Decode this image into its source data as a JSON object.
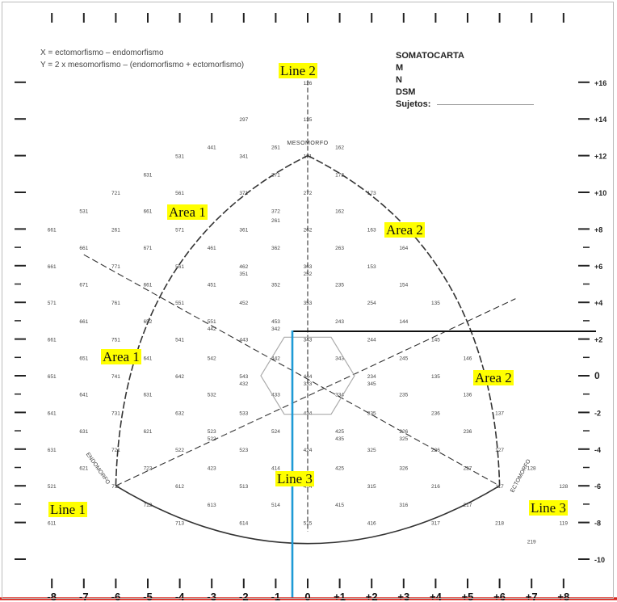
{
  "formulas": {
    "x": "X = ectomorfismo – endomorfismo",
    "y": "Y = 2 x mesomorfismo – (endomorfismo + ectomorfismo)"
  },
  "info": {
    "title": "SOMATOCARTA",
    "m": "M",
    "n": "N",
    "dsm": "DSM",
    "sujetos": "Sujetos:"
  },
  "labels": {
    "line1": "Line 1",
    "line2": "Line 2",
    "line3_center": "Line 3",
    "line3_right": "Line 3",
    "area1_top": "Area 1",
    "area1_mid": "Area 1",
    "area2_top": "Area 2",
    "area2_mid": "Area 2"
  },
  "axis_text": {
    "mesomorfo": "MESOMORFO",
    "endomorfo": "ENDOMORFO",
    "ectomorfo": "ECTOMORFO"
  },
  "x_ticks": [
    "-8",
    "-7",
    "-6",
    "-5",
    "-4",
    "-3",
    "-2",
    "-1",
    "0",
    "+1",
    "+2",
    "+3",
    "+4",
    "+5",
    "+6",
    "+7",
    "+8"
  ],
  "y_ticks": [
    "+16",
    "+14",
    "+12",
    "+10",
    "+8",
    "+6",
    "+4",
    "+2",
    "0",
    "-2",
    "-4",
    "-6",
    "-8",
    "-10"
  ],
  "grid_codes": [
    {
      "x": 0,
      "y": 16,
      "t": "126"
    },
    {
      "x": 0,
      "y": 14,
      "t": "135"
    },
    {
      "x": -2,
      "y": 14,
      "t": "297"
    },
    {
      "x": 0,
      "y": 12,
      "t": "171"
    },
    {
      "x": -1,
      "y": 12.5,
      "t": "261"
    },
    {
      "x": 1,
      "y": 12.5,
      "t": "162"
    },
    {
      "x": -3,
      "y": 12.5,
      "t": "441"
    },
    {
      "x": -4,
      "y": 12,
      "t": "531"
    },
    {
      "x": -2,
      "y": 12,
      "t": "341"
    },
    {
      "x": -1,
      "y": 11,
      "t": "271"
    },
    {
      "x": 1,
      "y": 11,
      "t": "172"
    },
    {
      "x": 0,
      "y": 10,
      "t": "272"
    },
    {
      "x": -2,
      "y": 10,
      "t": "371"
    },
    {
      "x": 2,
      "y": 10,
      "t": "173"
    },
    {
      "x": -4,
      "y": 10,
      "t": "561"
    },
    {
      "x": -5,
      "y": 11,
      "t": "631"
    },
    {
      "x": -6,
      "y": 10,
      "t": "721"
    },
    {
      "x": -7,
      "y": 9,
      "t": "531"
    },
    {
      "x": -5,
      "y": 9,
      "t": "661"
    },
    {
      "x": -1,
      "y": 9,
      "t": "372"
    },
    {
      "x": -1,
      "y": 8.5,
      "t": "261"
    },
    {
      "x": 1,
      "y": 9,
      "t": "162"
    },
    {
      "x": 0,
      "y": 8,
      "t": "262"
    },
    {
      "x": -2,
      "y": 8,
      "t": "361"
    },
    {
      "x": -4,
      "y": 8,
      "t": "571"
    },
    {
      "x": -6,
      "y": 8,
      "t": "261"
    },
    {
      "x": 2,
      "y": 8,
      "t": "163"
    },
    {
      "x": -8,
      "y": 8,
      "t": "661"
    },
    {
      "x": -7,
      "y": 7,
      "t": "661"
    },
    {
      "x": -5,
      "y": 7,
      "t": "671"
    },
    {
      "x": -3,
      "y": 7,
      "t": "461"
    },
    {
      "x": -1,
      "y": 7,
      "t": "362"
    },
    {
      "x": 1,
      "y": 7,
      "t": "263"
    },
    {
      "x": 3,
      "y": 7,
      "t": "164"
    },
    {
      "x": 0,
      "y": 6,
      "t": "363"
    },
    {
      "x": 0,
      "y": 5.6,
      "t": "252"
    },
    {
      "x": -2,
      "y": 6,
      "t": "462"
    },
    {
      "x": -2,
      "y": 5.6,
      "t": "351"
    },
    {
      "x": -4,
      "y": 6,
      "t": "561"
    },
    {
      "x": -6,
      "y": 6,
      "t": "771"
    },
    {
      "x": -8,
      "y": 6,
      "t": "661"
    },
    {
      "x": 2,
      "y": 6,
      "t": "153"
    },
    {
      "x": -7,
      "y": 5,
      "t": "671"
    },
    {
      "x": -5,
      "y": 5,
      "t": "661"
    },
    {
      "x": -3,
      "y": 5,
      "t": "451"
    },
    {
      "x": -1,
      "y": 5,
      "t": "352"
    },
    {
      "x": 1,
      "y": 5,
      "t": "235"
    },
    {
      "x": 3,
      "y": 5,
      "t": "154"
    },
    {
      "x": 0,
      "y": 4,
      "t": "353"
    },
    {
      "x": -2,
      "y": 4,
      "t": "452"
    },
    {
      "x": -4,
      "y": 4,
      "t": "551"
    },
    {
      "x": -6,
      "y": 4,
      "t": "761"
    },
    {
      "x": -8,
      "y": 4,
      "t": "571"
    },
    {
      "x": 2,
      "y": 4,
      "t": "254"
    },
    {
      "x": 4,
      "y": 4,
      "t": "135"
    },
    {
      "x": -7,
      "y": 3,
      "t": "661"
    },
    {
      "x": -5,
      "y": 3,
      "t": "652"
    },
    {
      "x": -3,
      "y": 3,
      "t": "551"
    },
    {
      "x": -3,
      "y": 2.6,
      "t": "442"
    },
    {
      "x": -1,
      "y": 3,
      "t": "453"
    },
    {
      "x": -1,
      "y": 2.6,
      "t": "342"
    },
    {
      "x": 1,
      "y": 3,
      "t": "243"
    },
    {
      "x": 3,
      "y": 3,
      "t": "144"
    },
    {
      "x": 0,
      "y": 2,
      "t": "343"
    },
    {
      "x": -2,
      "y": 2,
      "t": "443"
    },
    {
      "x": -4,
      "y": 2,
      "t": "541"
    },
    {
      "x": -6,
      "y": 2,
      "t": "751"
    },
    {
      "x": -8,
      "y": 2,
      "t": "661"
    },
    {
      "x": 2,
      "y": 2,
      "t": "244"
    },
    {
      "x": 4,
      "y": 2,
      "t": "145"
    },
    {
      "x": -7,
      "y": 1,
      "t": "651"
    },
    {
      "x": -5,
      "y": 1,
      "t": "641"
    },
    {
      "x": -3,
      "y": 1,
      "t": "542"
    },
    {
      "x": -1,
      "y": 1,
      "t": "442"
    },
    {
      "x": 1,
      "y": 1,
      "t": "343"
    },
    {
      "x": 3,
      "y": 1,
      "t": "245"
    },
    {
      "x": 5,
      "y": 1,
      "t": "146"
    },
    {
      "x": 0,
      "y": 0,
      "t": "444"
    },
    {
      "x": 0,
      "y": -0.4,
      "t": "333"
    },
    {
      "x": -2,
      "y": 0,
      "t": "543"
    },
    {
      "x": -2,
      "y": -0.4,
      "t": "432"
    },
    {
      "x": 2,
      "y": 0,
      "t": "234"
    },
    {
      "x": 2,
      "y": -0.4,
      "t": "345"
    },
    {
      "x": -4,
      "y": 0,
      "t": "642"
    },
    {
      "x": -6,
      "y": 0,
      "t": "741"
    },
    {
      "x": -8,
      "y": 0,
      "t": "651"
    },
    {
      "x": 4,
      "y": 0,
      "t": "135"
    },
    {
      "x": -7,
      "y": -1,
      "t": "641"
    },
    {
      "x": -5,
      "y": -1,
      "t": "631"
    },
    {
      "x": -3,
      "y": -1,
      "t": "532"
    },
    {
      "x": -1,
      "y": -1,
      "t": "433"
    },
    {
      "x": 1,
      "y": -1,
      "t": "334"
    },
    {
      "x": 3,
      "y": -1,
      "t": "235"
    },
    {
      "x": 5,
      "y": -1,
      "t": "136"
    },
    {
      "x": 0,
      "y": -2,
      "t": "434"
    },
    {
      "x": -2,
      "y": -2,
      "t": "533"
    },
    {
      "x": -4,
      "y": -2,
      "t": "632"
    },
    {
      "x": -6,
      "y": -2,
      "t": "731"
    },
    {
      "x": -8,
      "y": -2,
      "t": "641"
    },
    {
      "x": 2,
      "y": -2,
      "t": "335"
    },
    {
      "x": 4,
      "y": -2,
      "t": "236"
    },
    {
      "x": 6,
      "y": -2,
      "t": "137"
    },
    {
      "x": -7,
      "y": -3,
      "t": "631"
    },
    {
      "x": -5,
      "y": -3,
      "t": "621"
    },
    {
      "x": -3,
      "y": -3,
      "t": "523"
    },
    {
      "x": -3,
      "y": -3.4,
      "t": "522"
    },
    {
      "x": -1,
      "y": -3,
      "t": "524"
    },
    {
      "x": 1,
      "y": -3,
      "t": "425"
    },
    {
      "x": 1,
      "y": -3.4,
      "t": "435"
    },
    {
      "x": 3,
      "y": -3,
      "t": "226"
    },
    {
      "x": 3,
      "y": -3.4,
      "t": "325"
    },
    {
      "x": 5,
      "y": -3,
      "t": "236"
    },
    {
      "x": -8,
      "y": -4,
      "t": "631"
    },
    {
      "x": -6,
      "y": -4,
      "t": "721"
    },
    {
      "x": -4,
      "y": -4,
      "t": "522"
    },
    {
      "x": -2,
      "y": -4,
      "t": "523"
    },
    {
      "x": 0,
      "y": -4,
      "t": "424"
    },
    {
      "x": 2,
      "y": -4,
      "t": "325"
    },
    {
      "x": 4,
      "y": -4,
      "t": "226"
    },
    {
      "x": 6,
      "y": -4,
      "t": "127"
    },
    {
      "x": -7,
      "y": -5,
      "t": "621"
    },
    {
      "x": -5,
      "y": -5,
      "t": "722"
    },
    {
      "x": -3,
      "y": -5,
      "t": "423"
    },
    {
      "x": -1,
      "y": -5,
      "t": "414"
    },
    {
      "x": 1,
      "y": -5,
      "t": "425"
    },
    {
      "x": 3,
      "y": -5,
      "t": "326"
    },
    {
      "x": 5,
      "y": -5,
      "t": "227"
    },
    {
      "x": 7,
      "y": -5,
      "t": "128"
    },
    {
      "x": -8,
      "y": -6,
      "t": "521"
    },
    {
      "x": -6,
      "y": -6,
      "t": "711"
    },
    {
      "x": -4,
      "y": -6,
      "t": "612"
    },
    {
      "x": -2,
      "y": -6,
      "t": "513"
    },
    {
      "x": 0,
      "y": -6,
      "t": "414"
    },
    {
      "x": 2,
      "y": -6,
      "t": "315"
    },
    {
      "x": 4,
      "y": -6,
      "t": "216"
    },
    {
      "x": 6,
      "y": -6,
      "t": "117"
    },
    {
      "x": 8,
      "y": -6,
      "t": "128"
    },
    {
      "x": -5,
      "y": -7,
      "t": "712"
    },
    {
      "x": -3,
      "y": -7,
      "t": "613"
    },
    {
      "x": -1,
      "y": -7,
      "t": "514"
    },
    {
      "x": 1,
      "y": -7,
      "t": "415"
    },
    {
      "x": 3,
      "y": -7,
      "t": "316"
    },
    {
      "x": 5,
      "y": -7,
      "t": "217"
    },
    {
      "x": -8,
      "y": -8,
      "t": "611"
    },
    {
      "x": -4,
      "y": -8,
      "t": "713"
    },
    {
      "x": -2,
      "y": -8,
      "t": "614"
    },
    {
      "x": 0,
      "y": -8,
      "t": "515"
    },
    {
      "x": 2,
      "y": -8,
      "t": "416"
    },
    {
      "x": 4,
      "y": -8,
      "t": "317"
    },
    {
      "x": 6,
      "y": -8,
      "t": "218"
    },
    {
      "x": 8,
      "y": -8,
      "t": "119"
    },
    {
      "x": 7,
      "y": -9,
      "t": "219"
    }
  ],
  "colors": {
    "highlight": "#ffff00",
    "quadrant_lines": "#111111",
    "vertical_line": "#1e9ad6",
    "baseline": "#d9261c",
    "curve": "#333333",
    "hexagon": "#aaaaaa"
  }
}
